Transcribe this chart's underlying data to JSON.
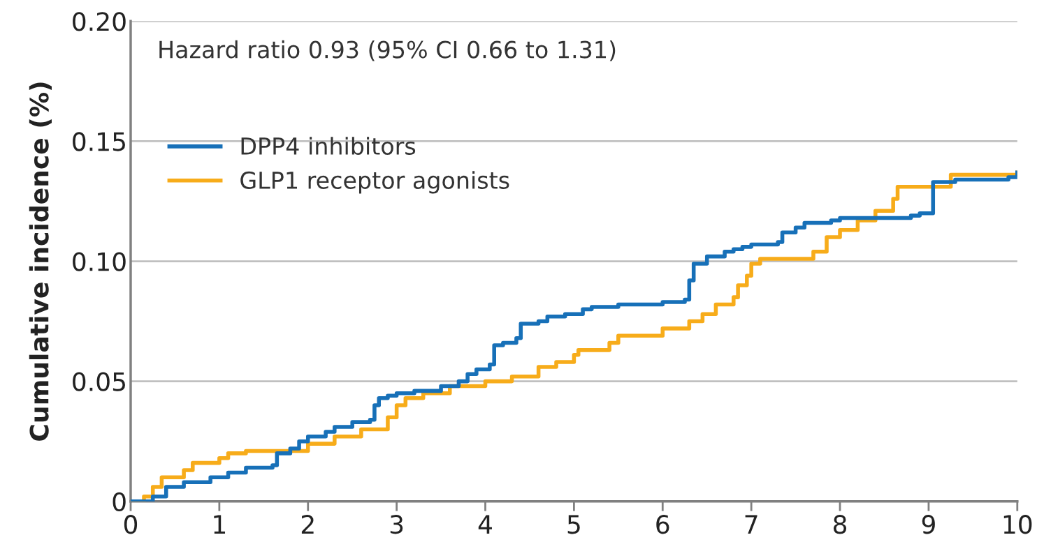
{
  "chart_data": {
    "type": "step",
    "ylabel": "Cumulative incidence (%)",
    "annotations": [
      "Hazard ratio 0.93 (95% CI 0.66 to 1.31)"
    ],
    "xlim": [
      0,
      10
    ],
    "xticks": [
      0,
      1,
      2,
      3,
      4,
      5,
      6,
      7,
      8,
      9,
      10
    ],
    "ylim": [
      0,
      0.2
    ],
    "yticks": [
      0,
      0.05,
      {
        "value": 0.1,
        "label": "0.10"
      },
      0.15,
      {
        "value": 0.2,
        "label": "0.20"
      }
    ],
    "grid": "y",
    "legend": "top left",
    "marker": "none",
    "line_style": "solid",
    "series": [
      {
        "name": "DPP4 inhibitors",
        "color": "#1770b8",
        "x": [
          0,
          0.25,
          0.4,
          0.6,
          0.9,
          1.1,
          1.3,
          1.6,
          1.65,
          1.8,
          1.9,
          2.0,
          2.2,
          2.3,
          2.5,
          2.7,
          2.75,
          2.8,
          2.9,
          3.0,
          3.2,
          3.5,
          3.7,
          3.8,
          3.9,
          4.05,
          4.1,
          4.2,
          4.35,
          4.4,
          4.6,
          4.7,
          4.9,
          5.1,
          5.2,
          5.5,
          6.0,
          6.25,
          6.3,
          6.35,
          6.5,
          6.7,
          6.8,
          6.9,
          7.0,
          7.3,
          7.35,
          7.5,
          7.6,
          7.9,
          8.0,
          8.8,
          8.9,
          9.05,
          9.3,
          9.9,
          10
        ],
        "values": [
          0,
          0.002,
          0.006,
          0.008,
          0.01,
          0.012,
          0.014,
          0.015,
          0.02,
          0.022,
          0.025,
          0.027,
          0.029,
          0.031,
          0.033,
          0.034,
          0.04,
          0.043,
          0.044,
          0.045,
          0.046,
          0.048,
          0.05,
          0.053,
          0.055,
          0.057,
          0.065,
          0.066,
          0.068,
          0.074,
          0.075,
          0.077,
          0.078,
          0.08,
          0.081,
          0.082,
          0.083,
          0.084,
          0.092,
          0.099,
          0.102,
          0.104,
          0.105,
          0.106,
          0.107,
          0.108,
          0.112,
          0.114,
          0.116,
          0.117,
          0.118,
          0.119,
          0.12,
          0.133,
          0.134,
          0.135,
          0.137
        ]
      },
      {
        "name": "GLP1 receptor agonists",
        "color": "#f7ac1a",
        "x": [
          0,
          0.15,
          0.25,
          0.35,
          0.6,
          0.7,
          1.0,
          1.1,
          1.3,
          2.0,
          2.3,
          2.6,
          2.9,
          3.0,
          3.1,
          3.3,
          3.6,
          4.0,
          4.3,
          4.6,
          4.8,
          5.0,
          5.05,
          5.4,
          5.5,
          6.0,
          6.3,
          6.45,
          6.6,
          6.8,
          6.85,
          6.95,
          7.0,
          7.1,
          7.7,
          7.85,
          8.0,
          8.2,
          8.4,
          8.6,
          8.65,
          9.25,
          10
        ],
        "values": [
          0,
          0.002,
          0.006,
          0.01,
          0.013,
          0.016,
          0.018,
          0.02,
          0.021,
          0.024,
          0.027,
          0.03,
          0.035,
          0.04,
          0.043,
          0.045,
          0.048,
          0.05,
          0.052,
          0.056,
          0.058,
          0.061,
          0.063,
          0.066,
          0.069,
          0.072,
          0.075,
          0.078,
          0.082,
          0.085,
          0.09,
          0.094,
          0.099,
          0.101,
          0.104,
          0.11,
          0.113,
          0.117,
          0.121,
          0.126,
          0.131,
          0.136,
          0.137
        ]
      }
    ]
  }
}
